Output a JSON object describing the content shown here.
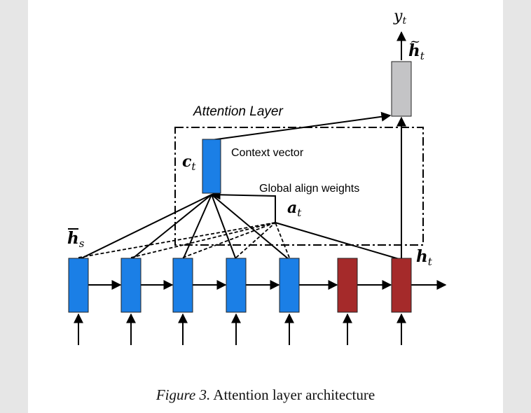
{
  "diagram": {
    "attention_layer_label": "Attention Layer",
    "context_vector_label": "Context vector",
    "global_align_label": "Global align weights",
    "c_t": {
      "base": "c",
      "sub": "t"
    },
    "a_t": {
      "base": "a",
      "sub": "t"
    },
    "h_s": {
      "base": "h",
      "sub": "s"
    },
    "h_t": {
      "base": "h",
      "sub": "t"
    },
    "h_tilde_t": {
      "base": "h",
      "sub": "t"
    },
    "y_t": {
      "base": "y",
      "sub": "t"
    },
    "colors": {
      "encoder": "#1b7fe6",
      "decoder": "#a52a2a",
      "output": "#c4c4c6",
      "stroke": "#000000"
    }
  },
  "caption": {
    "figure_label": "Figure 3.",
    "text": "Attention layer architecture"
  }
}
